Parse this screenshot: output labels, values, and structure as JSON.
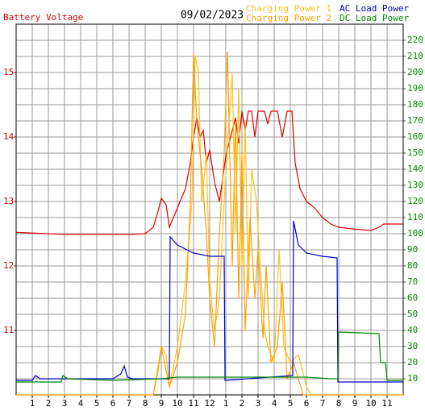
{
  "chart_data": {
    "type": "line",
    "title": "09/02/2023",
    "xlim": [
      0,
      24
    ],
    "xticks": [
      1,
      2,
      3,
      4,
      5,
      6,
      7,
      8,
      9,
      10,
      11,
      12,
      {
        "value": 13,
        "label": "1"
      },
      {
        "value": 14,
        "label": "2"
      },
      {
        "value": 15,
        "label": "3"
      },
      {
        "value": 16,
        "label": "4"
      },
      {
        "value": 17,
        "label": "5"
      },
      {
        "value": 18,
        "label": "6"
      },
      {
        "value": 19,
        "label": "7"
      },
      {
        "value": 20,
        "label": "8"
      },
      {
        "value": 21,
        "label": "9"
      },
      {
        "value": 22,
        "label": "10"
      },
      {
        "value": 23,
        "label": "11"
      }
    ],
    "ylim": [
      10,
      15.75
    ],
    "yticks": [
      11,
      12,
      13,
      14,
      15
    ],
    "y2lim": [
      0,
      230
    ],
    "y2ticks": [
      10,
      20,
      30,
      40,
      50,
      60,
      70,
      80,
      90,
      100,
      110,
      120,
      130,
      140,
      150,
      160,
      170,
      180,
      190,
      200,
      210,
      220
    ],
    "grid": true,
    "series": [
      {
        "name": "Battery Voltage",
        "color": "#dd0000",
        "x": [
          0,
          3,
          7,
          8,
          8.5,
          8.8,
          9.0,
          9.3,
          9.5,
          10,
          10.5,
          10.8,
          11.0,
          11.2,
          11.4,
          11.6,
          11.8,
          12.0,
          12.3,
          12.6,
          13.0,
          13.3,
          13.6,
          13.8,
          14.0,
          14.2,
          14.4,
          14.6,
          14.8,
          15.0,
          15.4,
          15.6,
          15.8,
          16.2,
          16.5,
          16.8,
          17.1,
          17.3,
          17.6,
          18,
          18.5,
          19,
          19.5,
          20,
          21,
          22,
          22.5,
          22.8,
          24
        ],
        "values": [
          12.52,
          12.49,
          12.49,
          12.5,
          12.6,
          12.85,
          13.05,
          12.95,
          12.6,
          12.9,
          13.2,
          13.6,
          14.0,
          14.3,
          14.0,
          14.1,
          13.6,
          13.8,
          13.3,
          13.0,
          13.7,
          14.0,
          14.3,
          13.9,
          14.4,
          14.1,
          14.4,
          14.4,
          14.0,
          14.4,
          14.4,
          14.2,
          14.4,
          14.4,
          14.0,
          14.4,
          14.4,
          13.6,
          13.2,
          13.0,
          12.9,
          12.75,
          12.65,
          12.6,
          12.57,
          12.55,
          12.6,
          12.65,
          12.65
        ]
      },
      {
        "name": "Charging Power 1",
        "color": "#ffc020",
        "axis": "y2",
        "x": [
          0,
          8.5,
          9.0,
          9.3,
          9.5,
          10,
          10.5,
          10.9,
          11.1,
          11.3,
          11.5,
          11.8,
          12.0,
          12.3,
          12.6,
          12.9,
          13.2,
          13.4,
          13.6,
          13.8,
          14.0,
          14.2,
          14.4,
          14.6,
          14.9,
          15.2,
          15.4,
          15.6,
          16.0,
          16.3,
          16.6,
          17.0,
          17.5,
          18,
          18.3,
          24
        ],
        "values": [
          0,
          0,
          30,
          25,
          5,
          30,
          70,
          120,
          210,
          200,
          120,
          150,
          70,
          40,
          60,
          120,
          170,
          200,
          100,
          190,
          80,
          170,
          60,
          140,
          120,
          70,
          40,
          30,
          20,
          90,
          30,
          20,
          25,
          5,
          0,
          0
        ]
      },
      {
        "name": "Charging Power 2",
        "color": "#ffa000",
        "axis": "y2",
        "x": [
          0,
          8.5,
          8.8,
          9.0,
          9.2,
          9.5,
          10,
          10.5,
          10.8,
          11.0,
          11.2,
          11.5,
          11.8,
          12.0,
          12.3,
          12.6,
          12.9,
          13.1,
          13.4,
          13.6,
          13.8,
          14.0,
          14.2,
          14.5,
          14.8,
          15.0,
          15.3,
          15.5,
          15.8,
          16.2,
          16.5,
          16.8,
          17.2,
          17.5,
          17.8,
          24
        ],
        "values": [
          0,
          0,
          15,
          30,
          20,
          5,
          20,
          50,
          120,
          212,
          170,
          140,
          100,
          60,
          30,
          100,
          150,
          213,
          80,
          170,
          60,
          150,
          40,
          110,
          60,
          90,
          35,
          80,
          20,
          30,
          70,
          10,
          20,
          10,
          0,
          0
        ]
      },
      {
        "name": "AC Load Power",
        "color": "#0000cc",
        "axis": "y2",
        "x": [
          0,
          1,
          1.2,
          1.5,
          2,
          6,
          6.5,
          6.7,
          6.9,
          7.2,
          9.5,
          9.55,
          10,
          11,
          12,
          12.9,
          12.95,
          17.15,
          17.2,
          17.5,
          18,
          19,
          19.9,
          19.95,
          24
        ],
        "values": [
          9,
          9,
          12,
          10,
          10,
          10,
          13,
          18,
          11,
          10,
          10,
          98,
          93,
          88,
          86,
          86,
          9,
          12,
          108,
          93,
          88,
          86,
          85,
          8,
          8
        ]
      },
      {
        "name": "DC Load Power",
        "color": "#008800",
        "axis": "y2",
        "x": [
          0,
          2.8,
          2.9,
          3.2,
          6,
          9,
          10,
          13,
          18,
          19.5,
          19.95,
          20,
          22.5,
          22.6,
          22.9,
          23,
          24
        ],
        "values": [
          8,
          8,
          12,
          10,
          9,
          10,
          11,
          11,
          11,
          10,
          10,
          39,
          38,
          20,
          20,
          9,
          9
        ]
      }
    ]
  }
}
